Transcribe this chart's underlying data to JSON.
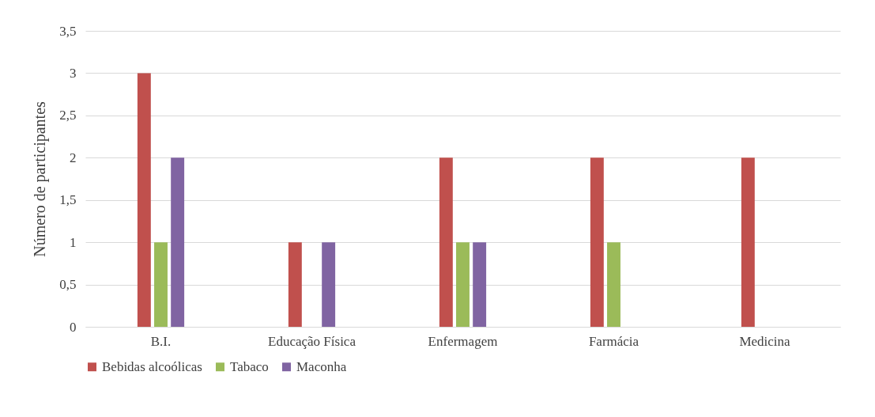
{
  "chart_data": {
    "type": "bar",
    "ylabel": "Número de participantes",
    "categories": [
      "B.I.",
      "Educação Física",
      "Enfermagem",
      "Farmácia",
      "Medicina"
    ],
    "series": [
      {
        "name": "Bebidas alcoólicas",
        "color": "#c0504d",
        "values": [
          3,
          1,
          2,
          2,
          2
        ]
      },
      {
        "name": "Tabaco",
        "color": "#9bbb59",
        "values": [
          1,
          0,
          1,
          1,
          0
        ]
      },
      {
        "name": "Maconha",
        "color": "#8064a2",
        "values": [
          2,
          1,
          1,
          0,
          0
        ]
      }
    ],
    "ylim": [
      0,
      3.5
    ],
    "yticks": [
      0,
      {
        "value": 0.5,
        "label": "0,5"
      },
      1,
      {
        "value": 1.5,
        "label": "1,5"
      },
      2,
      {
        "value": 2.5,
        "label": "2,5"
      },
      3,
      {
        "value": 3.5,
        "label": "3,5"
      }
    ],
    "grid": "y",
    "legend": "bottom"
  }
}
